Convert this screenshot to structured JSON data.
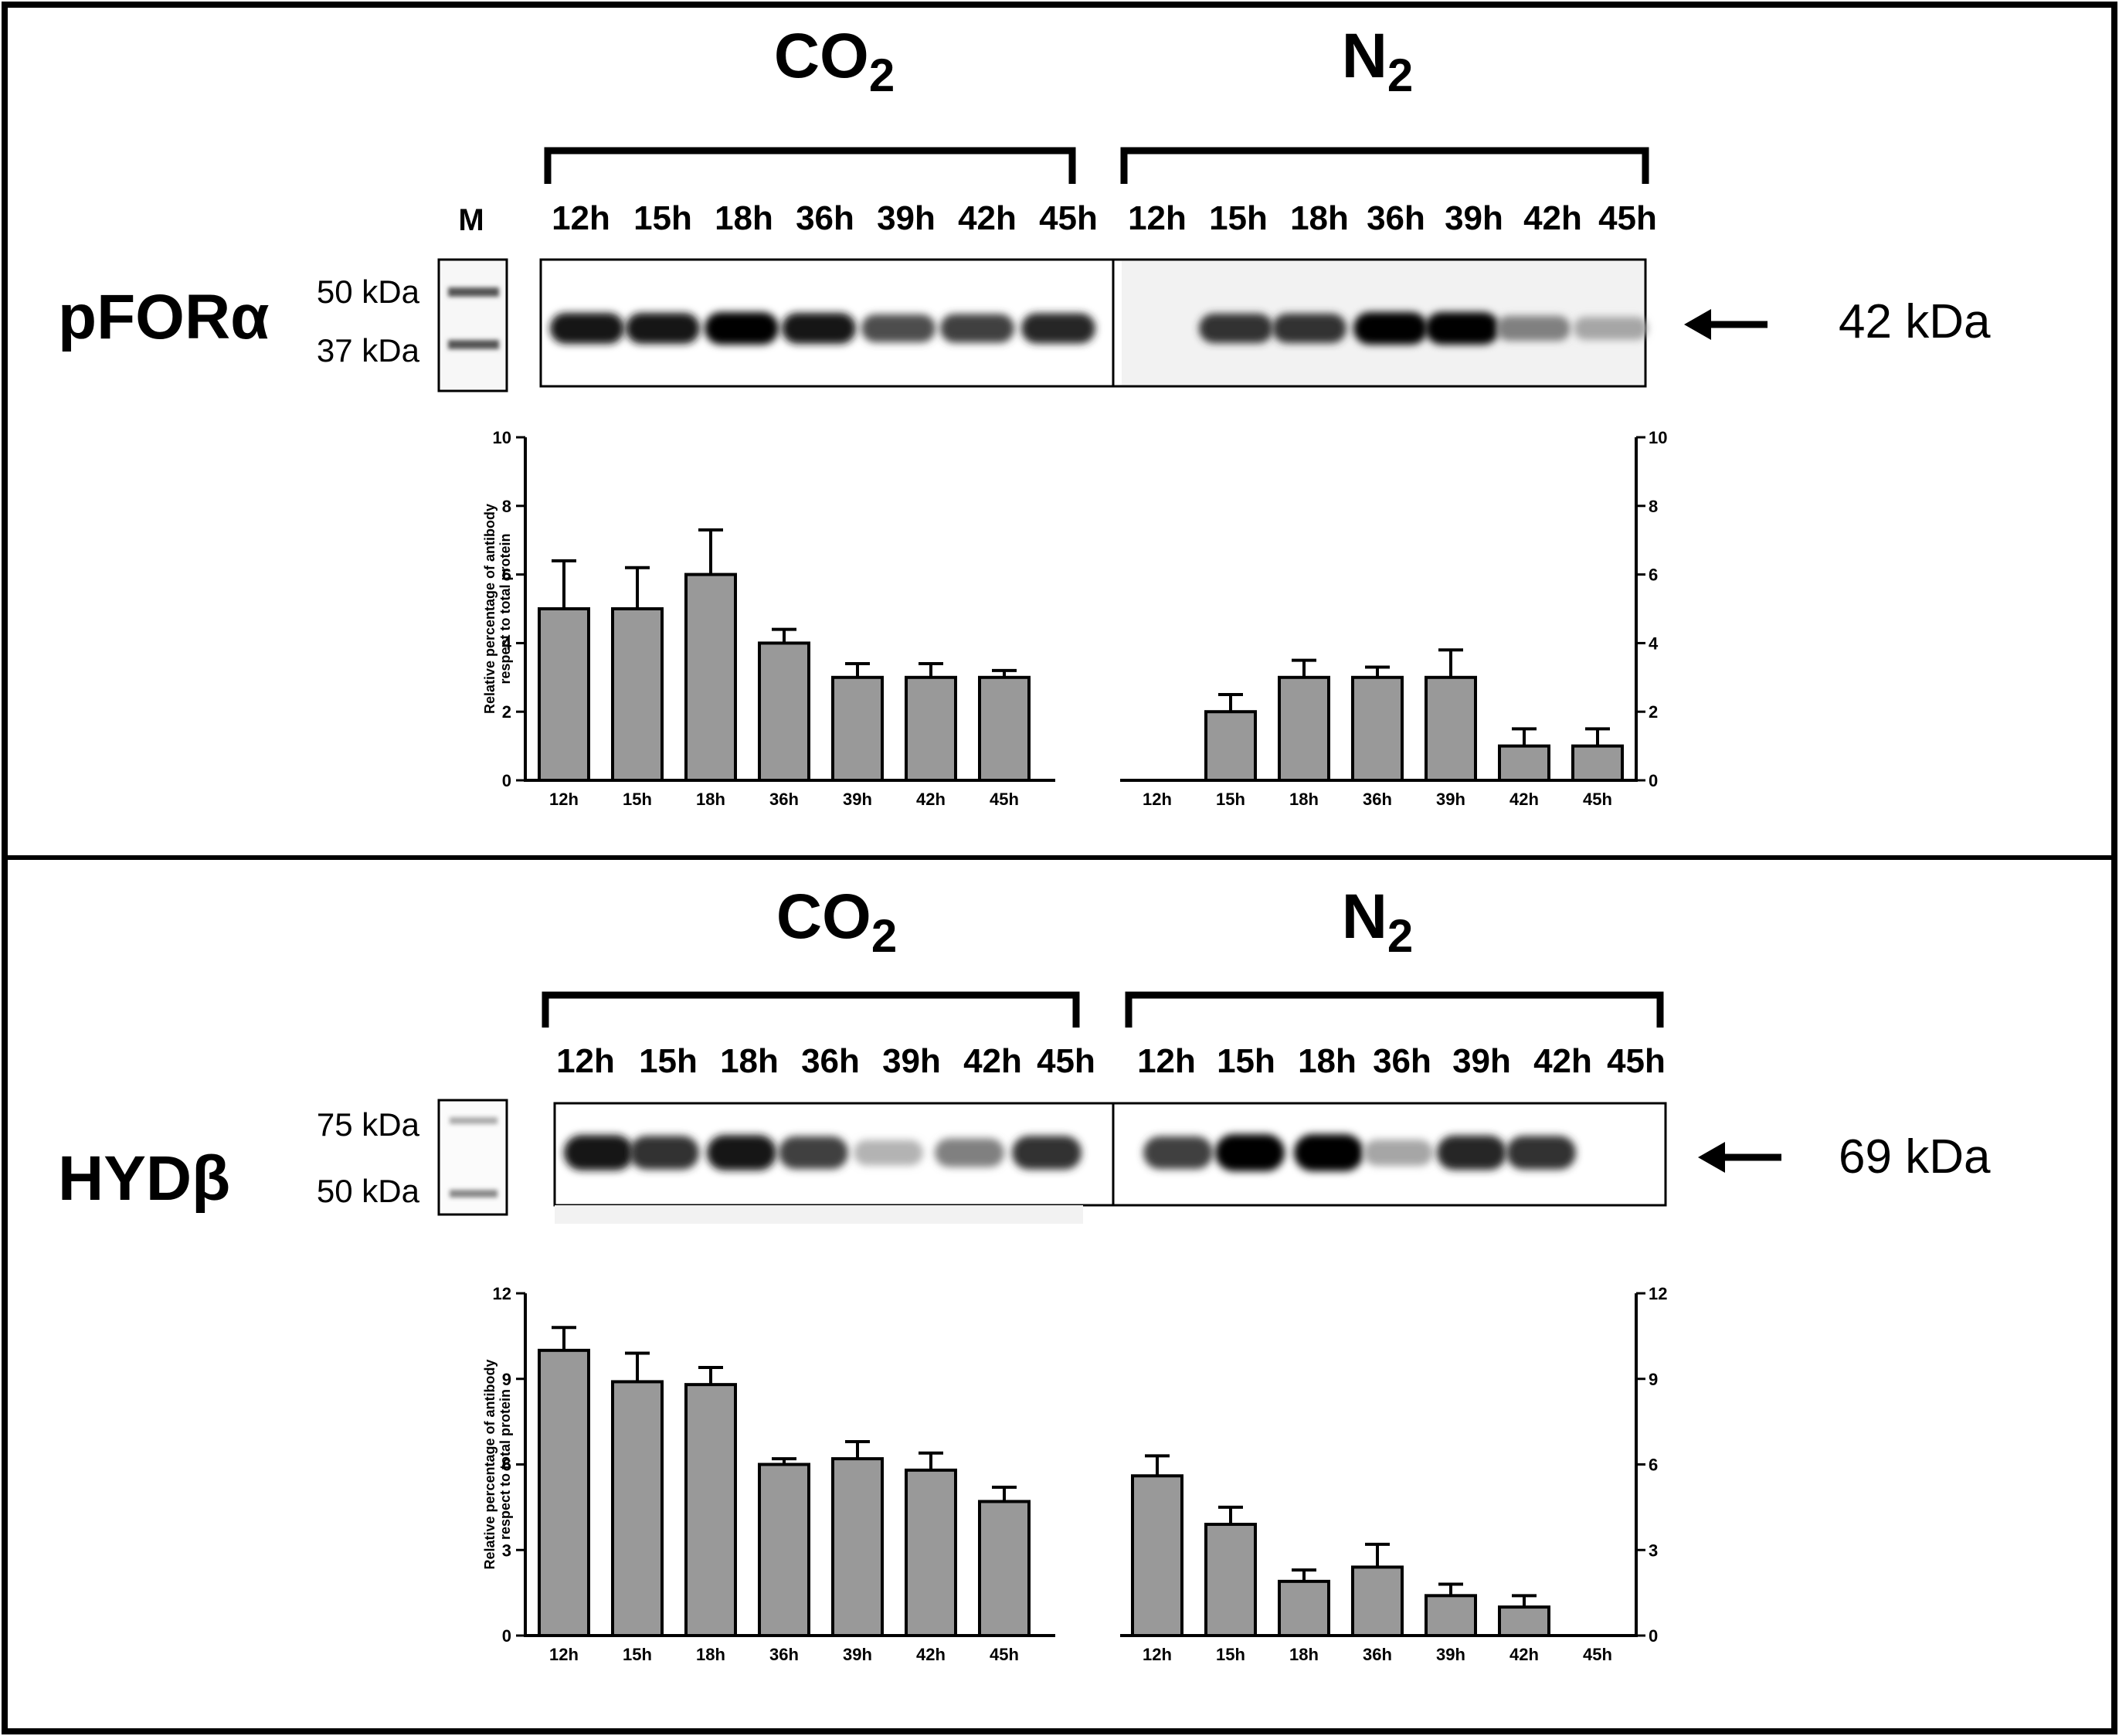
{
  "panels": [
    {
      "protein_label": "pFORα",
      "groups": [
        {
          "name": "CO",
          "subscript": "2",
          "lanes": [
            "12h",
            "15h",
            "18h",
            "36h",
            "39h",
            "42h",
            "45h"
          ]
        },
        {
          "name": "N",
          "subscript": "2",
          "lanes": [
            "12h",
            "15h",
            "18h",
            "36h",
            "39h",
            "42h",
            "45h"
          ]
        }
      ],
      "marker_label": "M",
      "marker_sizes": [
        "50 kDa",
        "37 kDa"
      ],
      "band_size": "42 kDa",
      "blot_intensity": {
        "CO2": [
          0.9,
          0.9,
          1.0,
          0.9,
          0.7,
          0.75,
          0.85
        ],
        "N2": [
          0.0,
          0.8,
          0.8,
          1.0,
          1.0,
          0.5,
          0.35
        ]
      }
    },
    {
      "protein_label": "HYDβ",
      "groups": [
        {
          "name": "CO",
          "subscript": "2",
          "lanes": [
            "12h",
            "15h",
            "18h",
            "36h",
            "39h",
            "42h",
            "45h"
          ]
        },
        {
          "name": "N",
          "subscript": "2",
          "lanes": [
            "12h",
            "15h",
            "18h",
            "36h",
            "39h",
            "42h",
            "45h"
          ]
        }
      ],
      "marker_label": "",
      "marker_sizes": [
        "75 kDa",
        "50 kDa"
      ],
      "band_size": "69 kDa",
      "blot_intensity": {
        "CO2": [
          0.9,
          0.8,
          0.9,
          0.75,
          0.3,
          0.5,
          0.8
        ],
        "N2": [
          0.75,
          1.0,
          1.0,
          0.35,
          0.85,
          0.8,
          0.0
        ]
      }
    }
  ],
  "chart_data": [
    {
      "type": "bar",
      "panel": "pFORα",
      "ylabel": "Relative percentage of antibody respect to total protein",
      "ylim": [
        0,
        10
      ],
      "yticks": [
        "0",
        "2",
        "4",
        "6",
        "8",
        "10"
      ],
      "categories": [
        "12h",
        "15h",
        "18h",
        "36h",
        "39h",
        "42h",
        "45h"
      ],
      "series": [
        {
          "group": "CO2",
          "values": [
            5,
            5,
            6,
            4,
            3,
            3,
            3
          ],
          "errors": [
            1.4,
            1.2,
            1.3,
            0.4,
            0.4,
            0.4,
            0.2
          ]
        },
        {
          "group": "N2",
          "values": [
            0,
            2,
            3,
            3,
            3,
            1,
            1
          ],
          "errors": [
            0,
            0.5,
            0.5,
            0.3,
            0.8,
            0.5,
            0.5
          ]
        }
      ],
      "grid": false,
      "bar_color": "#999999"
    },
    {
      "type": "bar",
      "panel": "HYDβ",
      "ylabel": "Relative percentage of antibody respect to total protein",
      "ylim": [
        0,
        12
      ],
      "yticks": [
        "0",
        "3",
        "6",
        "9",
        "12"
      ],
      "categories": [
        "12h",
        "15h",
        "18h",
        "36h",
        "39h",
        "42h",
        "45h"
      ],
      "series": [
        {
          "group": "CO2",
          "values": [
            10,
            8.9,
            8.8,
            6.0,
            6.2,
            5.8,
            4.7
          ],
          "errors": [
            0.8,
            1.0,
            0.6,
            0.2,
            0.6,
            0.6,
            0.5
          ]
        },
        {
          "group": "N2",
          "values": [
            5.6,
            3.9,
            1.9,
            2.4,
            1.4,
            1.0,
            0
          ],
          "errors": [
            0.7,
            0.6,
            0.4,
            0.8,
            0.4,
            0.4,
            0
          ]
        }
      ],
      "grid": false,
      "bar_color": "#999999"
    }
  ]
}
